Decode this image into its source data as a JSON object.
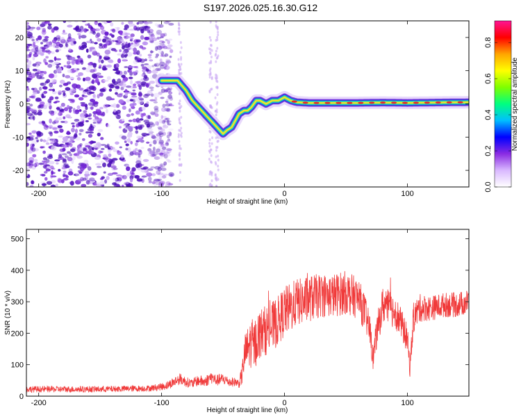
{
  "title": "S197.2026.025.16.30.G12",
  "colors": {
    "line": "#f03a3a",
    "speckle_dark": "#6a1ed0",
    "speckle_light": "#d6c0f6",
    "track_core": "#e8202c",
    "track_edge": "#2040c0"
  },
  "chart_data": [
    {
      "type": "heatmap",
      "xlabel": "Height of straight line (km)",
      "ylabel": "Frequency (Hz)",
      "xlim": [
        -210,
        150
      ],
      "ylim": [
        -25,
        25
      ],
      "xticks": [
        -200,
        -100,
        0,
        100
      ],
      "yticks": [
        -20,
        -10,
        0,
        10,
        20
      ],
      "colorbar": {
        "label": "Normalized spectral amplitude",
        "range": [
          0.0,
          0.92
        ],
        "ticks": [
          "0.0",
          "0.2",
          "0.4",
          "0.6",
          "0.8"
        ],
        "tick_values": [
          0.0,
          0.2,
          0.4,
          0.6,
          0.8
        ],
        "colormap": [
          "#ffffff",
          "#d9b8ff",
          "#8a2be2",
          "#0000ff",
          "#00bfff",
          "#00ff80",
          "#7fff00",
          "#ffff00",
          "#ffa500",
          "#ff0000",
          "#ff1493"
        ]
      },
      "noise_region_x": [
        -210,
        -100
      ],
      "track": {
        "x": [
          -100,
          -93,
          -87,
          -80,
          -75,
          -70,
          -65,
          -60,
          -55,
          -50,
          -47,
          -43,
          -40,
          -37,
          -33,
          -30,
          -27,
          -23,
          -20,
          -15,
          -10,
          -5,
          0,
          5,
          10,
          20,
          40,
          60,
          80,
          100,
          120,
          150
        ],
        "freq": [
          7,
          7,
          7,
          4,
          1,
          -1,
          -3,
          -5,
          -7,
          -9,
          -8,
          -7,
          -5,
          -3,
          -2,
          -2,
          -1,
          1,
          1,
          0,
          1,
          1,
          2,
          1,
          0.5,
          0.3,
          0.3,
          0.3,
          0.4,
          0.3,
          0.4,
          0.5
        ]
      }
    },
    {
      "type": "line",
      "xlabel": "Height of straight line (km)",
      "ylabel": "SNR (10 * v/v)",
      "xlim": [
        -210,
        150
      ],
      "ylim": [
        0,
        530
      ],
      "xticks": [
        -200,
        -100,
        0,
        100
      ],
      "yticks": [
        0,
        100,
        200,
        300,
        400,
        500
      ],
      "series": [
        {
          "name": "SNR",
          "envelope_x": [
            -210,
            -150,
            -110,
            -100,
            -95,
            -90,
            -85,
            -80,
            -75,
            -70,
            -65,
            -60,
            -55,
            -50,
            -45,
            -40,
            -37,
            -35,
            -32,
            -30,
            -27,
            -25,
            -20,
            -15,
            -10,
            -5,
            0,
            5,
            10,
            15,
            20,
            30,
            40,
            50,
            60,
            65,
            70,
            72,
            75,
            80,
            90,
            95,
            100,
            102,
            105,
            110,
            120,
            130,
            140,
            150
          ],
          "envelope_snr": [
            22,
            22,
            25,
            30,
            35,
            45,
            55,
            45,
            40,
            50,
            45,
            60,
            50,
            55,
            45,
            45,
            40,
            60,
            140,
            150,
            170,
            160,
            200,
            210,
            220,
            240,
            270,
            280,
            300,
            300,
            310,
            320,
            320,
            330,
            310,
            270,
            200,
            120,
            200,
            290,
            270,
            230,
            180,
            90,
            250,
            280,
            280,
            290,
            290,
            300
          ],
          "noise_amplitude": [
            10,
            10,
            10,
            12,
            14,
            16,
            18,
            16,
            15,
            18,
            18,
            20,
            18,
            18,
            16,
            14,
            14,
            30,
            60,
            70,
            80,
            80,
            80,
            80,
            80,
            80,
            80,
            80,
            75,
            75,
            75,
            70,
            70,
            70,
            65,
            60,
            50,
            40,
            50,
            60,
            55,
            50,
            45,
            30,
            50,
            45,
            40,
            40,
            40,
            40
          ]
        }
      ]
    }
  ]
}
